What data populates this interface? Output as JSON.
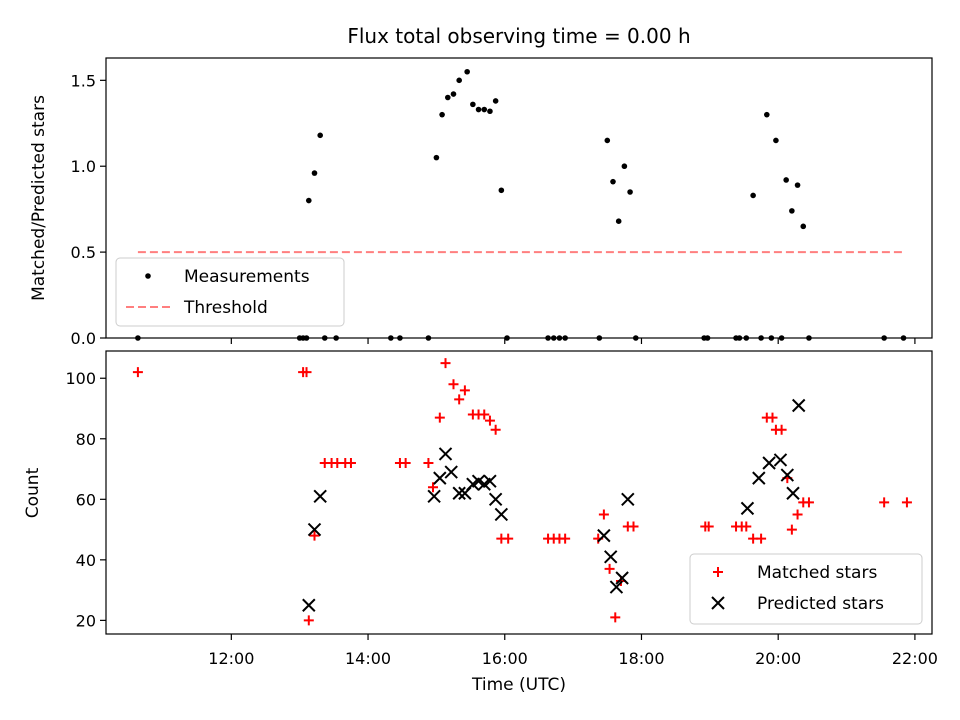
{
  "chart_data": [
    {
      "type": "scatter",
      "title": "Flux total observing time = 0.00 h",
      "xlabel": "",
      "ylabel": "Matched/Predicted stars",
      "x_unit": "time (UTC)",
      "xlim": [
        "10:10",
        "22:15"
      ],
      "ylim": [
        0,
        1.63
      ],
      "yticks": [
        "0.0",
        "0.5",
        "1.0",
        "1.5"
      ],
      "legend": {
        "placement": "lower-left",
        "entries": [
          "Measurements",
          "Threshold"
        ]
      },
      "series": [
        {
          "name": "Measurements",
          "marker": "dot",
          "color": "#000000",
          "points": [
            [
              "10:38",
              0
            ],
            [
              "13:00",
              0
            ],
            [
              "13:03",
              0
            ],
            [
              "13:06",
              0
            ],
            [
              "13:08",
              0.8
            ],
            [
              "13:13",
              0.96
            ],
            [
              "13:18",
              1.18
            ],
            [
              "13:22",
              0
            ],
            [
              "13:32",
              0
            ],
            [
              "14:20",
              0
            ],
            [
              "14:28",
              0
            ],
            [
              "14:53",
              0
            ],
            [
              "15:00",
              1.05
            ],
            [
              "15:05",
              1.3
            ],
            [
              "15:10",
              1.4
            ],
            [
              "15:15",
              1.42
            ],
            [
              "15:20",
              1.5
            ],
            [
              "15:27",
              1.55
            ],
            [
              "15:32",
              1.36
            ],
            [
              "15:37",
              1.33
            ],
            [
              "15:42",
              1.33
            ],
            [
              "15:47",
              1.32
            ],
            [
              "15:52",
              1.38
            ],
            [
              "15:57",
              0.86
            ],
            [
              "16:02",
              0
            ],
            [
              "16:38",
              0
            ],
            [
              "16:43",
              0
            ],
            [
              "16:48",
              0
            ],
            [
              "16:53",
              0
            ],
            [
              "17:23",
              0
            ],
            [
              "17:30",
              1.15
            ],
            [
              "17:35",
              0.91
            ],
            [
              "17:40",
              0.68
            ],
            [
              "17:45",
              1.0
            ],
            [
              "17:50",
              0.85
            ],
            [
              "17:55",
              0
            ],
            [
              "18:55",
              0
            ],
            [
              "18:58",
              0
            ],
            [
              "19:23",
              0
            ],
            [
              "19:26",
              0
            ],
            [
              "19:32",
              0
            ],
            [
              "19:38",
              0.83
            ],
            [
              "19:45",
              0
            ],
            [
              "19:50",
              1.3
            ],
            [
              "19:54",
              0
            ],
            [
              "19:58",
              1.15
            ],
            [
              "20:03",
              0
            ],
            [
              "20:07",
              0.92
            ],
            [
              "20:12",
              0.74
            ],
            [
              "20:17",
              0.89
            ],
            [
              "20:22",
              0.65
            ],
            [
              "20:27",
              0
            ],
            [
              "21:33",
              0
            ],
            [
              "21:50",
              0
            ]
          ]
        },
        {
          "name": "Threshold",
          "style": "dashed",
          "color": "#ff7f7f",
          "points": [
            [
              "10:38",
              0.5
            ],
            [
              "21:52",
              0.5
            ]
          ]
        }
      ]
    },
    {
      "type": "scatter",
      "title": "",
      "xlabel": "Time (UTC)",
      "ylabel": "Count",
      "x_unit": "time (UTC)",
      "xlim": [
        "10:10",
        "22:15"
      ],
      "ylim": [
        15.5,
        109
      ],
      "xticks": [
        "12:00",
        "14:00",
        "16:00",
        "18:00",
        "20:00",
        "22:00"
      ],
      "yticks": [
        "20",
        "40",
        "60",
        "80",
        "100"
      ],
      "legend": {
        "placement": "lower-right",
        "entries": [
          "Matched stars",
          "Predicted stars"
        ]
      },
      "series": [
        {
          "name": "Matched stars",
          "marker": "plus",
          "color": "#ff0000",
          "points": [
            [
              "10:38",
              102
            ],
            [
              "13:03",
              102
            ],
            [
              "13:06",
              102
            ],
            [
              "13:08",
              20
            ],
            [
              "13:13",
              48
            ],
            [
              "13:22",
              72
            ],
            [
              "13:28",
              72
            ],
            [
              "13:33",
              72
            ],
            [
              "13:40",
              72
            ],
            [
              "13:45",
              72
            ],
            [
              "14:28",
              72
            ],
            [
              "14:33",
              72
            ],
            [
              "14:53",
              72
            ],
            [
              "14:57",
              64
            ],
            [
              "15:03",
              87
            ],
            [
              "15:08",
              105
            ],
            [
              "15:15",
              98
            ],
            [
              "15:20",
              93
            ],
            [
              "15:25",
              96
            ],
            [
              "15:32",
              88
            ],
            [
              "15:37",
              88
            ],
            [
              "15:42",
              88
            ],
            [
              "15:47",
              86
            ],
            [
              "15:52",
              83
            ],
            [
              "15:57",
              47
            ],
            [
              "16:03",
              47
            ],
            [
              "16:38",
              47
            ],
            [
              "16:43",
              47
            ],
            [
              "16:48",
              47
            ],
            [
              "16:53",
              47
            ],
            [
              "17:22",
              47
            ],
            [
              "17:27",
              55
            ],
            [
              "17:32",
              37
            ],
            [
              "17:37",
              21
            ],
            [
              "17:42",
              33
            ],
            [
              "17:48",
              51
            ],
            [
              "17:53",
              51
            ],
            [
              "18:56",
              51
            ],
            [
              "18:59",
              51
            ],
            [
              "19:23",
              51
            ],
            [
              "19:28",
              51
            ],
            [
              "19:32",
              51
            ],
            [
              "19:38",
              47
            ],
            [
              "19:45",
              47
            ],
            [
              "19:50",
              87
            ],
            [
              "19:55",
              87
            ],
            [
              "19:58",
              83
            ],
            [
              "20:03",
              83
            ],
            [
              "20:08",
              67
            ],
            [
              "20:12",
              50
            ],
            [
              "20:17",
              55
            ],
            [
              "20:22",
              59
            ],
            [
              "20:27",
              59
            ],
            [
              "21:33",
              59
            ],
            [
              "21:53",
              59
            ]
          ]
        },
        {
          "name": "Predicted stars",
          "marker": "x",
          "color": "#000000",
          "points": [
            [
              "13:08",
              25
            ],
            [
              "13:13",
              50
            ],
            [
              "13:18",
              61
            ],
            [
              "14:58",
              61
            ],
            [
              "15:03",
              67
            ],
            [
              "15:08",
              75
            ],
            [
              "15:13",
              69
            ],
            [
              "15:20",
              62
            ],
            [
              "15:25",
              62
            ],
            [
              "15:32",
              65
            ],
            [
              "15:37",
              66
            ],
            [
              "15:42",
              65
            ],
            [
              "15:47",
              66
            ],
            [
              "15:52",
              60
            ],
            [
              "15:57",
              55
            ],
            [
              "17:27",
              48
            ],
            [
              "17:33",
              41
            ],
            [
              "17:38",
              31
            ],
            [
              "17:43",
              34
            ],
            [
              "17:48",
              60
            ],
            [
              "19:33",
              57
            ],
            [
              "19:43",
              67
            ],
            [
              "19:52",
              72
            ],
            [
              "20:02",
              73
            ],
            [
              "20:08",
              68
            ],
            [
              "20:13",
              62
            ],
            [
              "20:18",
              91
            ]
          ]
        }
      ]
    }
  ],
  "colors": {
    "axes": "#000000",
    "matched": "#ff0000",
    "predicted": "#000000",
    "threshold": "#ff7f7f",
    "legend_border": "#cccccc"
  }
}
